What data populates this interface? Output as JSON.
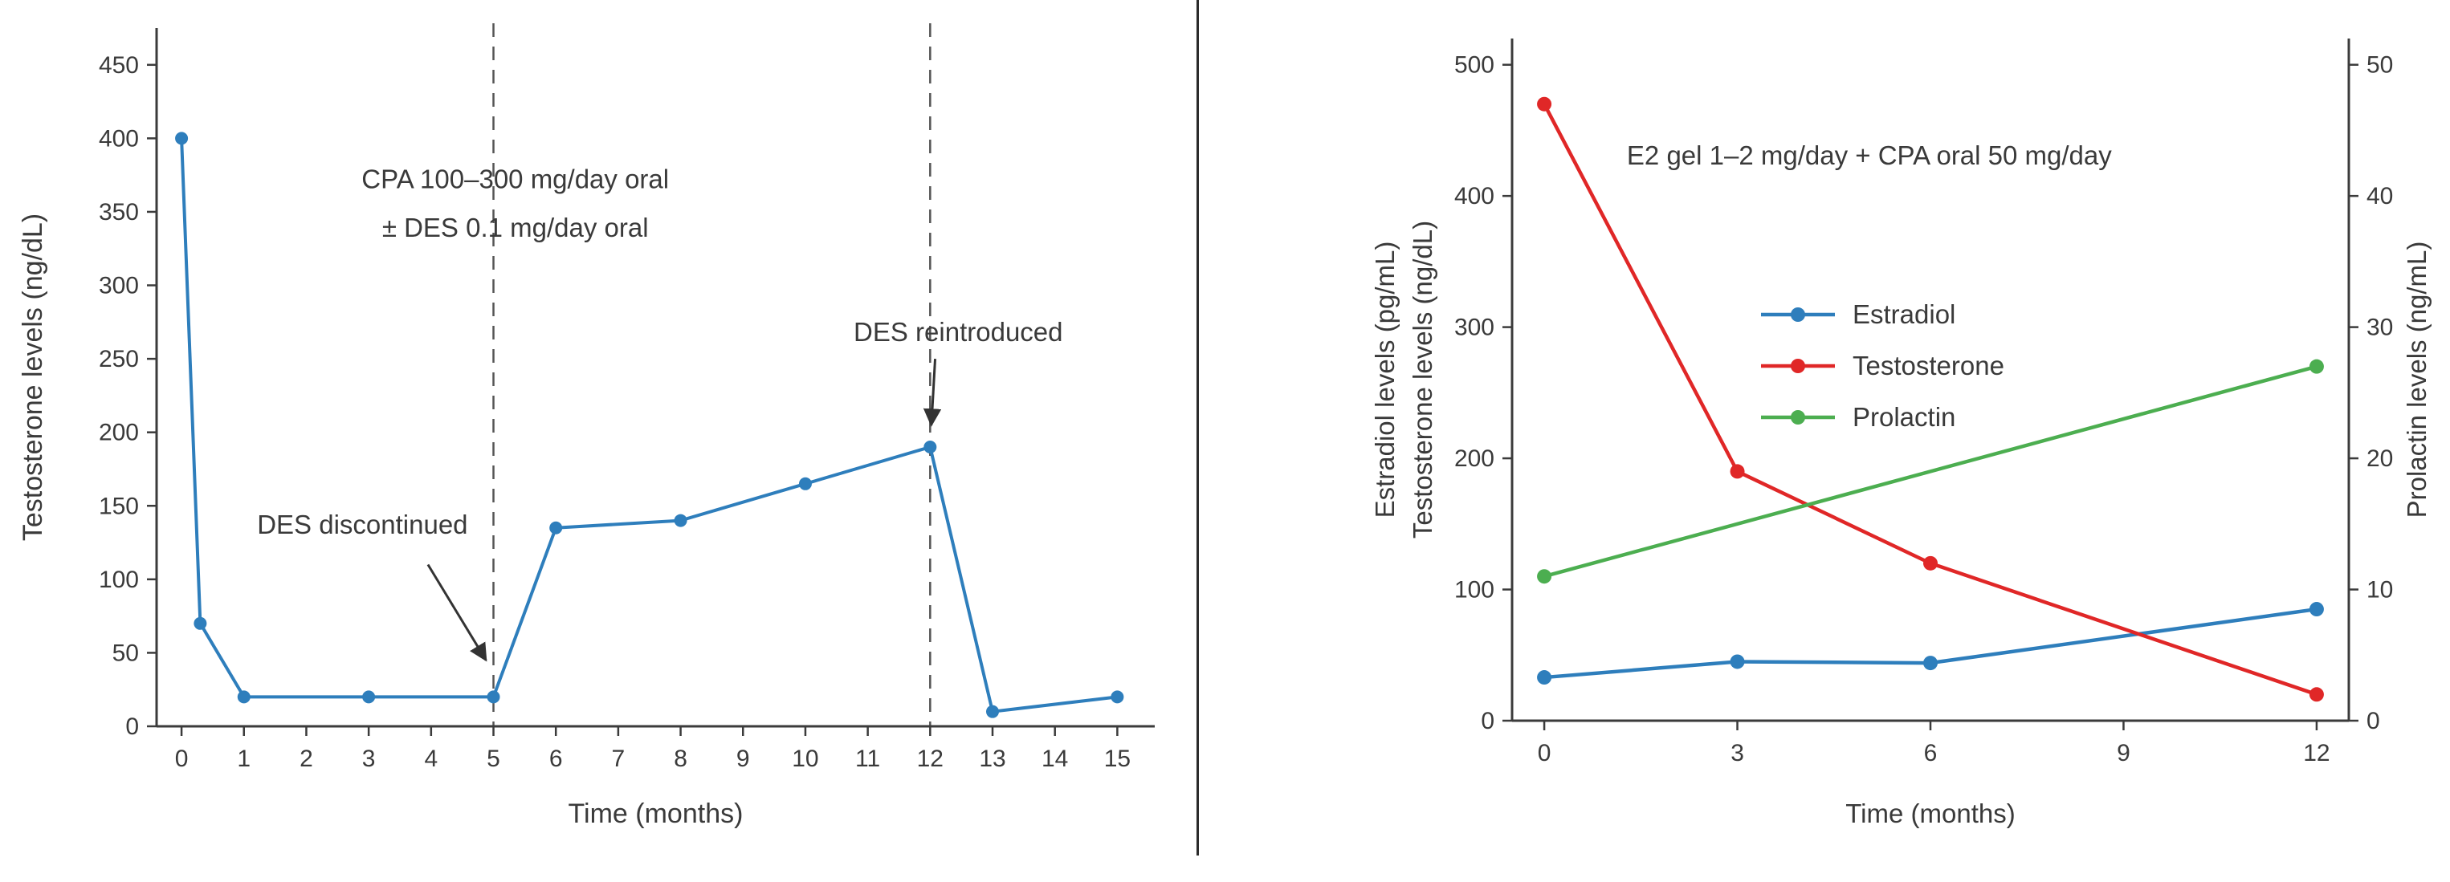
{
  "page": {
    "background": "#ffffff",
    "divider_color": "#2b2b2b",
    "axis_color": "#3b3b3b",
    "annotation_color": "#333333"
  },
  "chart_data": [
    {
      "type": "line",
      "title": "",
      "xlabel": "Time (months)",
      "ylabels_left": [
        "Testosterone levels (ng/dL)"
      ],
      "xlim": [
        -0.4,
        15.6
      ],
      "ylim_left": [
        0,
        475
      ],
      "xticks": [
        0,
        1,
        2,
        3,
        4,
        5,
        6,
        7,
        8,
        9,
        10,
        11,
        12,
        13,
        14,
        15
      ],
      "yticks_left": [
        0,
        50,
        100,
        150,
        200,
        250,
        300,
        350,
        400,
        450
      ],
      "grid": false,
      "legend": null,
      "series": [
        {
          "name": "Testosterone",
          "color": "#2e7ebc",
          "axis": "left",
          "x": [
            0,
            0.3,
            1,
            3,
            5,
            6,
            8,
            10,
            12,
            13,
            15
          ],
          "y": [
            400,
            70,
            20,
            20,
            20,
            135,
            140,
            165,
            190,
            10,
            20
          ]
        }
      ],
      "vlines": [
        {
          "x": 5,
          "style": "dashed",
          "color": "#555555"
        },
        {
          "x": 12,
          "style": "dashed",
          "color": "#555555"
        }
      ],
      "annotations": [
        {
          "text": "CPA 100–300 mg/day oral",
          "x": 5.35,
          "y": 366
        },
        {
          "text": "± DES 0.1 mg/day oral",
          "x": 5.35,
          "y": 333
        },
        {
          "text": "DES discontinued",
          "x": 2.9,
          "y": 131,
          "arrow_from": [
            3.95,
            110
          ],
          "arrow_to": [
            4.88,
            45
          ]
        },
        {
          "text": "DES reintroduced",
          "x": 12.45,
          "y": 262,
          "arrow_from": [
            12.08,
            250
          ],
          "arrow_to": [
            12.02,
            205
          ]
        }
      ]
    },
    {
      "type": "line",
      "title": "E2 gel 1–2 mg/day + CPA oral 50 mg/day",
      "xlabel": "Time (months)",
      "ylabels_left": [
        "Estradiol levels (pg/mL)",
        "Testosterone levels (ng/dL)"
      ],
      "ylabel_right": "Prolactin levels (ng/mL)",
      "xlim": [
        -0.5,
        12.5
      ],
      "ylim_left": [
        0,
        520
      ],
      "ylim_right": [
        0,
        52
      ],
      "xticks": [
        0,
        3,
        6,
        9,
        12
      ],
      "yticks_left": [
        0,
        100,
        200,
        300,
        400,
        500
      ],
      "yticks_right": [
        0,
        10,
        20,
        30,
        40,
        50
      ],
      "grid": false,
      "legend": [
        "Estradiol",
        "Testosterone",
        "Prolactin"
      ],
      "series": [
        {
          "name": "Estradiol",
          "color": "#2e7ebc",
          "axis": "left",
          "x": [
            0,
            3,
            6,
            12
          ],
          "y": [
            33,
            45,
            44,
            85
          ]
        },
        {
          "name": "Testosterone",
          "color": "#e02727",
          "axis": "left",
          "x": [
            0,
            3,
            6,
            12
          ],
          "y": [
            470,
            190,
            120,
            20
          ]
        },
        {
          "name": "Prolactin",
          "color": "#4cae50",
          "axis": "right",
          "x": [
            0,
            12
          ],
          "y": [
            11,
            27
          ]
        }
      ],
      "vlines": [],
      "annotations": [
        {
          "text": "E2 gel 1–2 mg/day + CPA oral 50 mg/day",
          "x": 5.05,
          "y": 424
        }
      ]
    }
  ]
}
